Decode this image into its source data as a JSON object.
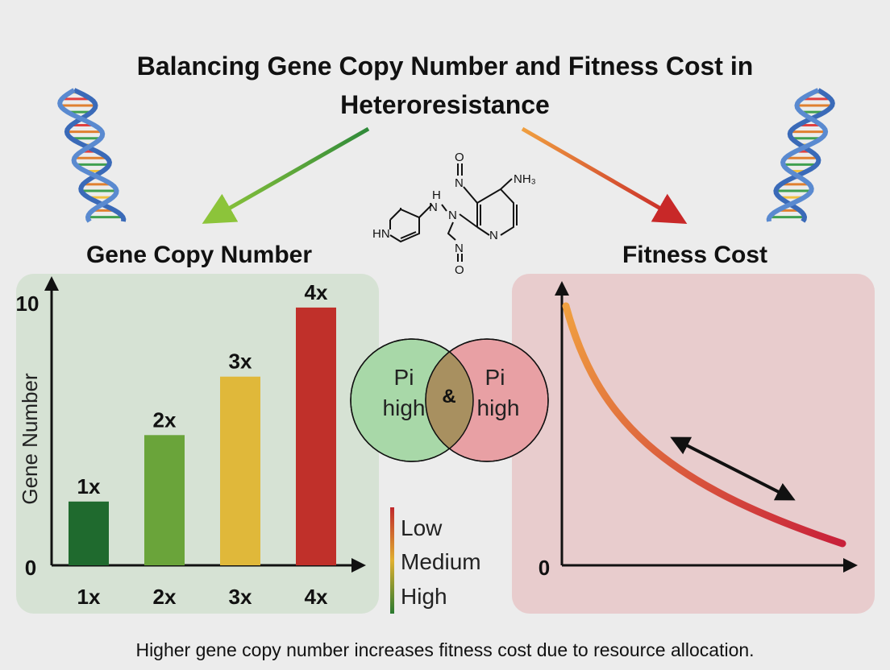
{
  "title_line1": "Balancing Gene Copy Number and Fitness Cost in",
  "title_line2": "Heteroresistance",
  "left_heading": "Gene Copy Number",
  "right_heading": "Fitness Cost",
  "caption": "Higher gene copy number increases fitness cost due to resource allocation.",
  "molecule": {
    "labels": [
      "O",
      "N",
      "NH₃",
      "H",
      "N",
      "N",
      "N",
      "HN",
      "N",
      "O"
    ]
  },
  "venn": {
    "left": {
      "line1": "Pi",
      "line2": "high",
      "color": "#a8d8a8"
    },
    "right": {
      "line1": "Pi",
      "line2": "high",
      "color": "#e8a0a4"
    },
    "overlap": "&"
  },
  "legend": {
    "items": [
      "Low",
      "Medium",
      "High"
    ],
    "colors": [
      "#c0282c",
      "#e0b030",
      "#2a7a30"
    ]
  },
  "chart_data": [
    {
      "type": "bar",
      "title": "Gene Copy Number",
      "ylabel": "Gene Number",
      "xlabel": "",
      "categories": [
        "1x",
        "2x",
        "3x",
        "4x"
      ],
      "values": [
        2.4,
        4.9,
        7.1,
        9.7
      ],
      "data_labels": [
        "1x",
        "2x",
        "3x",
        "4x"
      ],
      "ylim": [
        0,
        10
      ],
      "y_ticks": [
        "0",
        "10"
      ],
      "colors": [
        "#1f6a2e",
        "#6aa43a",
        "#e0b83a",
        "#c0302a"
      ],
      "grid": false
    },
    {
      "type": "line",
      "title": "Fitness Cost",
      "y_ticks": [
        "0"
      ],
      "trend": "decreasing-convex",
      "colors": [
        "#e88a30",
        "#c8283a"
      ],
      "grid": false
    }
  ]
}
